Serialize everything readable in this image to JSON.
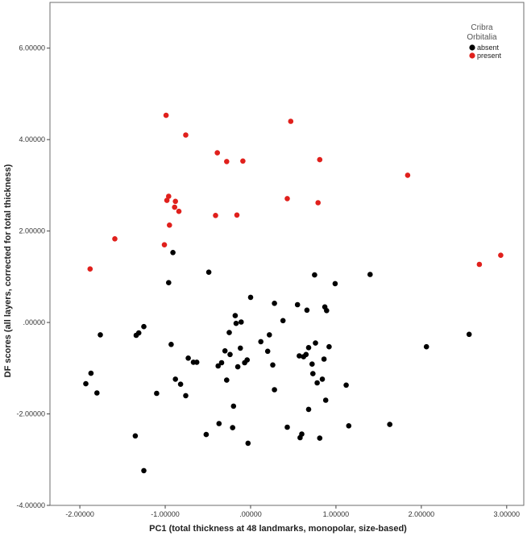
{
  "chart_data": {
    "type": "scatter",
    "xlabel": "PC1 (total thickness at 48 landmarks, monopolar, size-based)",
    "ylabel": "DF scores (all layers, corrected for total thickness)",
    "xlim": [
      -2.35,
      3.2
    ],
    "ylim": [
      -4.0,
      7.0
    ],
    "x_ticks": [
      -2.0,
      -1.0,
      0.0,
      1.0,
      2.0,
      3.0
    ],
    "x_tick_labels": [
      "-2.00000",
      "-1.00000",
      ".00000",
      "1.00000",
      "2.00000",
      "3.00000"
    ],
    "y_ticks": [
      -4.0,
      -2.0,
      0.0,
      2.0,
      4.0,
      6.0
    ],
    "y_tick_labels": [
      "-4.00000",
      "-2.00000",
      ".00000",
      "2.00000",
      "4.00000",
      "6.00000"
    ],
    "grid": false,
    "legend": {
      "title_lines": [
        "Cribra",
        "Orbitalia"
      ],
      "placement": "top-right"
    },
    "series": [
      {
        "name": "absent",
        "color": "#000000",
        "points": [
          [
            -1.93,
            -1.34
          ],
          [
            -1.87,
            -1.11
          ],
          [
            -1.8,
            -1.54
          ],
          [
            -1.76,
            -0.27
          ],
          [
            -1.34,
            -0.28
          ],
          [
            -1.31,
            -0.23
          ],
          [
            -1.35,
            -2.48
          ],
          [
            -1.25,
            -0.09
          ],
          [
            -1.25,
            -3.24
          ],
          [
            -1.1,
            -1.55
          ],
          [
            -0.96,
            0.87
          ],
          [
            -0.91,
            1.53
          ],
          [
            -0.93,
            -0.48
          ],
          [
            -0.88,
            -1.24
          ],
          [
            -0.82,
            -1.35
          ],
          [
            -0.76,
            -1.6
          ],
          [
            -0.73,
            -0.78
          ],
          [
            -0.67,
            -0.87
          ],
          [
            -0.63,
            -0.87
          ],
          [
            -0.52,
            -2.45
          ],
          [
            -0.49,
            1.1
          ],
          [
            -0.38,
            -0.95
          ],
          [
            -0.34,
            -0.88
          ],
          [
            -0.37,
            -2.21
          ],
          [
            -0.3,
            -0.62
          ],
          [
            -0.28,
            -1.26
          ],
          [
            -0.25,
            -0.22
          ],
          [
            -0.24,
            -0.7
          ],
          [
            -0.21,
            -2.3
          ],
          [
            -0.2,
            -1.83
          ],
          [
            -0.17,
            -0.02
          ],
          [
            -0.18,
            0.15
          ],
          [
            -0.15,
            -0.97
          ],
          [
            -0.12,
            -0.56
          ],
          [
            -0.11,
            0.01
          ],
          [
            -0.07,
            -0.88
          ],
          [
            -0.04,
            -0.82
          ],
          [
            -0.03,
            -2.64
          ],
          [
            0.0,
            0.55
          ],
          [
            0.12,
            -0.42
          ],
          [
            0.2,
            -0.63
          ],
          [
            0.22,
            -0.27
          ],
          [
            0.26,
            -0.93
          ],
          [
            0.28,
            -1.47
          ],
          [
            0.28,
            0.42
          ],
          [
            0.38,
            0.04
          ],
          [
            0.43,
            -2.29
          ],
          [
            0.55,
            0.39
          ],
          [
            0.57,
            -0.73
          ],
          [
            0.6,
            -2.44
          ],
          [
            0.58,
            -2.52
          ],
          [
            0.62,
            -0.75
          ],
          [
            0.65,
            -0.7
          ],
          [
            0.66,
            0.27
          ],
          [
            0.68,
            -0.55
          ],
          [
            0.68,
            -1.9
          ],
          [
            0.72,
            -0.91
          ],
          [
            0.73,
            -1.12
          ],
          [
            0.76,
            -0.45
          ],
          [
            0.75,
            1.04
          ],
          [
            0.78,
            -1.32
          ],
          [
            0.81,
            -2.53
          ],
          [
            0.84,
            -1.24
          ],
          [
            0.86,
            -0.8
          ],
          [
            0.87,
            0.34
          ],
          [
            0.88,
            -1.7
          ],
          [
            0.89,
            0.26
          ],
          [
            0.92,
            -0.53
          ],
          [
            0.99,
            0.85
          ],
          [
            1.12,
            -1.37
          ],
          [
            1.15,
            -2.26
          ],
          [
            1.4,
            1.05
          ],
          [
            1.63,
            -2.23
          ],
          [
            2.06,
            -0.53
          ],
          [
            2.56,
            -0.26
          ]
        ]
      },
      {
        "name": "present",
        "color": "#e0201c",
        "points": [
          [
            -1.88,
            1.17
          ],
          [
            -1.59,
            1.83
          ],
          [
            -1.01,
            1.7
          ],
          [
            -0.99,
            4.53
          ],
          [
            -0.98,
            2.67
          ],
          [
            -0.96,
            2.76
          ],
          [
            -0.95,
            2.13
          ],
          [
            -0.88,
            2.65
          ],
          [
            -0.89,
            2.52
          ],
          [
            -0.84,
            2.43
          ],
          [
            -0.76,
            4.1
          ],
          [
            -0.41,
            2.34
          ],
          [
            -0.39,
            3.71
          ],
          [
            -0.28,
            3.52
          ],
          [
            -0.16,
            2.35
          ],
          [
            -0.09,
            3.53
          ],
          [
            0.43,
            2.71
          ],
          [
            0.47,
            4.4
          ],
          [
            0.79,
            2.62
          ],
          [
            0.81,
            3.56
          ],
          [
            1.84,
            3.22
          ],
          [
            2.68,
            1.27
          ],
          [
            2.93,
            1.47
          ]
        ]
      }
    ]
  }
}
